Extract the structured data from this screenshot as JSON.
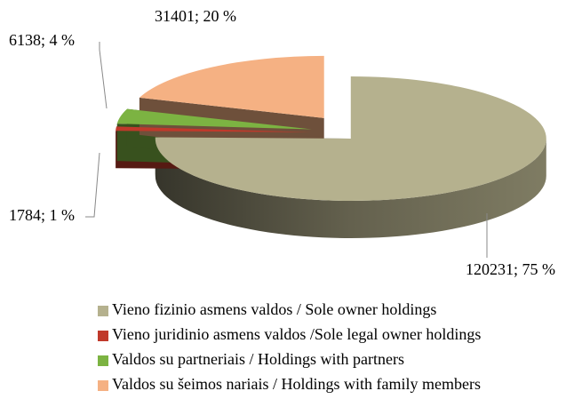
{
  "chart_data": {
    "type": "pie3d",
    "categories": [
      "Vieno fizinio asmens valdos / Sole owner holdings",
      "Vieno juridinio asmens valdos /Sole legal owner holdings",
      "Valdos su partneriais / Holdings with partners",
      "Valdos su šeimos nariais / Holdings with family members"
    ],
    "values": [
      120231,
      1784,
      6138,
      31401
    ],
    "value_labels": [
      "120231; 75 %",
      "1784; 1 %",
      "6138; 4 %",
      "31401; 20 %"
    ],
    "colors": [
      "#b5b18e",
      "#c0392b",
      "#7cb342",
      "#f5b183"
    ]
  }
}
